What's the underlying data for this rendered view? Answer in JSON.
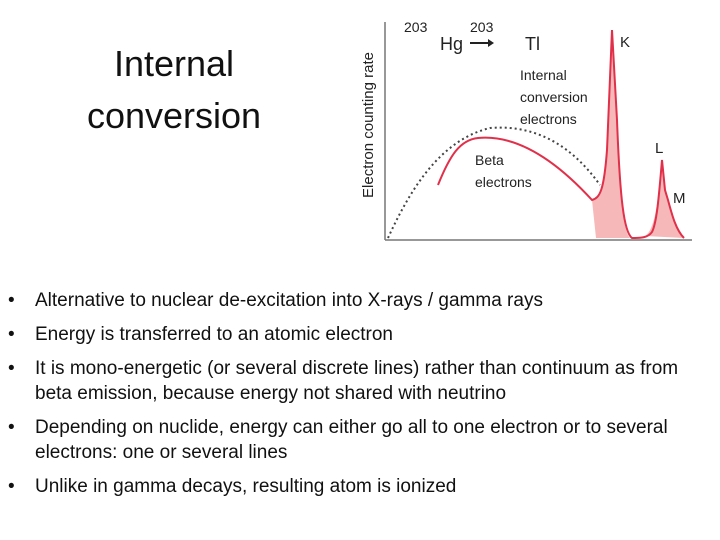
{
  "header": {
    "title_lines": [
      "Internal",
      "conversion"
    ]
  },
  "figure": {
    "y_axis_label": "Electron counting rate",
    "mass_number_left": "203",
    "parent": "Hg",
    "mass_number_right": "203",
    "daughter": "Tl",
    "k_label": "K",
    "l_label": "L",
    "m_label": "M",
    "conversion_label_lines": [
      "Internal",
      "conversion",
      "electrons"
    ],
    "beta_label_lines": [
      "Beta",
      "electrons"
    ]
  },
  "bullets": [
    "Alternative to nuclear de-excitation into X-rays / gamma rays",
    "Energy is transferred to an atomic electron",
    "It is mono-energetic (or several discrete lines) rather than continuum as from beta emission, because energy not shared with neutrino",
    "Depending on nuclide, energy can either go all to one electron or to several electrons: one or several lines",
    "Unlike in gamma decays, resulting atom is ionized"
  ]
}
